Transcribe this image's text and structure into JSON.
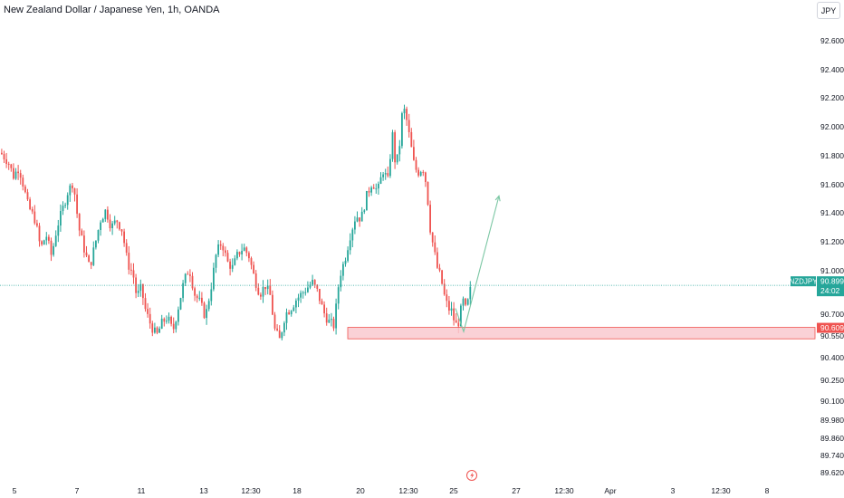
{
  "header": {
    "title": "New Zealand Dollar / Japanese Yen, 1h, OANDA",
    "currency_button": "JPY"
  },
  "colors": {
    "up": "#26a69a",
    "down": "#ef5350",
    "zone_fill": "#f9c9cf",
    "zone_border": "#ef5350",
    "arrow": "#7cc7a4",
    "last_price_line": "#26a69a",
    "axis_text": "#131722"
  },
  "chart_data": {
    "type": "candlestick",
    "symbol": "NZDJPY",
    "interval": "1h",
    "y_ticks": [
      92.6,
      92.4,
      92.2,
      92.0,
      91.8,
      91.6,
      91.4,
      91.2,
      91.0,
      90.7,
      90.55,
      90.4,
      90.25,
      90.1,
      89.98,
      89.86,
      89.74,
      89.62
    ],
    "y_tick_labels": [
      "92.600",
      "92.400",
      "92.200",
      "92.000",
      "91.800",
      "91.600",
      "91.400",
      "91.200",
      "91.000",
      "90.700",
      "90.550",
      "90.400",
      "90.250",
      "90.100",
      "89.980",
      "89.860",
      "89.740",
      "89.620"
    ],
    "x_tick_labels": [
      "5",
      "7",
      "11",
      "13",
      "12:30",
      "18",
      "20",
      "12:30",
      "25",
      "27",
      "12:30",
      "Apr",
      "3",
      "12:30",
      "8"
    ],
    "close_path": [
      [
        0,
        91.82
      ],
      [
        8,
        91.76
      ],
      [
        14,
        91.66
      ],
      [
        20,
        91.72
      ],
      [
        24,
        91.62
      ],
      [
        30,
        91.45
      ],
      [
        38,
        91.35
      ],
      [
        44,
        91.15
      ],
      [
        50,
        91.25
      ],
      [
        56,
        91.1
      ],
      [
        62,
        91.3
      ],
      [
        68,
        91.42
      ],
      [
        74,
        91.55
      ],
      [
        80,
        91.62
      ],
      [
        86,
        91.3
      ],
      [
        92,
        91.15
      ],
      [
        98,
        91.02
      ],
      [
        104,
        91.18
      ],
      [
        110,
        91.35
      ],
      [
        116,
        91.42
      ],
      [
        122,
        91.3
      ],
      [
        128,
        91.35
      ],
      [
        134,
        91.28
      ],
      [
        140,
        91.05
      ],
      [
        146,
        90.98
      ],
      [
        150,
        90.82
      ],
      [
        155,
        90.88
      ],
      [
        160,
        90.72
      ],
      [
        166,
        90.62
      ],
      [
        172,
        90.55
      ],
      [
        178,
        90.64
      ],
      [
        184,
        90.68
      ],
      [
        190,
        90.58
      ],
      [
        196,
        90.75
      ],
      [
        202,
        90.92
      ],
      [
        208,
        91.02
      ],
      [
        214,
        90.84
      ],
      [
        220,
        90.78
      ],
      [
        226,
        90.68
      ],
      [
        232,
        90.88
      ],
      [
        238,
        91.12
      ],
      [
        244,
        91.2
      ],
      [
        250,
        91.06
      ],
      [
        256,
        91.02
      ],
      [
        262,
        91.12
      ],
      [
        268,
        91.16
      ],
      [
        274,
        91.1
      ],
      [
        280,
        90.95
      ],
      [
        286,
        90.84
      ],
      [
        292,
        90.9
      ],
      [
        298,
        90.82
      ],
      [
        302,
        90.6
      ],
      [
        308,
        90.52
      ],
      [
        314,
        90.7
      ],
      [
        320,
        90.74
      ],
      [
        326,
        90.8
      ],
      [
        332,
        90.84
      ],
      [
        338,
        90.88
      ],
      [
        344,
        90.92
      ],
      [
        350,
        90.85
      ],
      [
        356,
        90.72
      ],
      [
        362,
        90.65
      ],
      [
        368,
        90.62
      ],
      [
        374,
        90.96
      ],
      [
        380,
        91.08
      ],
      [
        386,
        91.25
      ],
      [
        392,
        91.38
      ],
      [
        398,
        91.36
      ],
      [
        404,
        91.52
      ],
      [
        410,
        91.62
      ],
      [
        416,
        91.55
      ],
      [
        422,
        91.7
      ],
      [
        428,
        91.62
      ],
      [
        432,
        91.98
      ],
      [
        436,
        91.72
      ],
      [
        440,
        91.85
      ],
      [
        444,
        92.15
      ],
      [
        448,
        92.05
      ],
      [
        452,
        91.9
      ],
      [
        456,
        91.75
      ],
      [
        460,
        91.68
      ],
      [
        466,
        91.72
      ],
      [
        470,
        91.6
      ],
      [
        474,
        91.3
      ],
      [
        478,
        91.15
      ],
      [
        482,
        91.02
      ],
      [
        486,
        90.95
      ],
      [
        490,
        90.82
      ],
      [
        494,
        90.74
      ],
      [
        498,
        90.72
      ],
      [
        502,
        90.62
      ],
      [
        506,
        90.65
      ],
      [
        510,
        90.8
      ],
      [
        514,
        90.72
      ],
      [
        518,
        90.86
      ],
      [
        522,
        90.899
      ]
    ],
    "last_price": {
      "symbol": "NZDJPY",
      "value": 90.899,
      "label": "90.899",
      "countdown": "24:02"
    },
    "support_zone": {
      "top": 90.609,
      "bottom": 90.53,
      "label": "90.609"
    },
    "projection": {
      "from": 90.58,
      "to": 91.52
    },
    "annotations": {
      "event_icon": "lightning-icon"
    }
  }
}
